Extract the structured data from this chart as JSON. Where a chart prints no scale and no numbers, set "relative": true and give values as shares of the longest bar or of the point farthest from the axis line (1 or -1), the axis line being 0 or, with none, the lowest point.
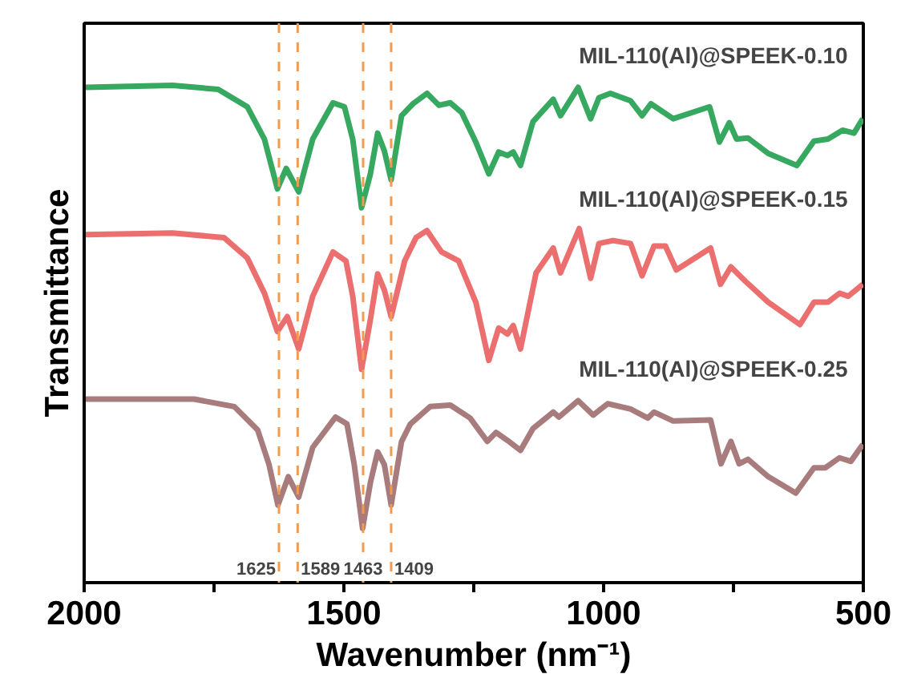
{
  "chart_data": {
    "type": "line",
    "relative": true,
    "xlabel": "Wavenumber (nm⁻¹)",
    "ylabel": "Transmittance",
    "xlim": [
      2000,
      500
    ],
    "xticks": [
      2000,
      1500,
      1000,
      500
    ],
    "grid": false,
    "legend": false,
    "tick_labels": "x",
    "series": [
      {
        "name": "MIL-110(Al)@SPEEK-0.10",
        "color": "#36a860",
        "x": [
          1997,
          1830,
          1742,
          1686,
          1653,
          1628,
          1611,
          1587,
          1560,
          1521,
          1499,
          1483,
          1466,
          1449,
          1435,
          1422,
          1409,
          1389,
          1367,
          1340,
          1317,
          1295,
          1273,
          1246,
          1221,
          1202,
          1185,
          1174,
          1160,
          1136,
          1097,
          1083,
          1049,
          1025,
          1009,
          987,
          948,
          926,
          909,
          866,
          796,
          777,
          758,
          744,
          722,
          683,
          628,
          595,
          568,
          540,
          518,
          501
        ],
        "values": [
          0.996,
          1.0,
          0.992,
          0.957,
          0.892,
          0.792,
          0.833,
          0.786,
          0.892,
          0.965,
          0.957,
          0.892,
          0.754,
          0.822,
          0.904,
          0.868,
          0.81,
          0.939,
          0.963,
          0.984,
          0.96,
          0.965,
          0.945,
          0.886,
          0.822,
          0.866,
          0.859,
          0.866,
          0.839,
          0.927,
          0.972,
          0.939,
          0.996,
          0.933,
          0.975,
          0.984,
          0.969,
          0.939,
          0.963,
          0.933,
          0.957,
          0.886,
          0.925,
          0.892,
          0.894,
          0.863,
          0.839,
          0.888,
          0.892,
          0.91,
          0.904,
          0.933
        ]
      },
      {
        "name": "MIL-110(Al)@SPEEK-0.15",
        "color": "#ec6f6f",
        "x": [
          1997,
          1830,
          1731,
          1686,
          1653,
          1628,
          1609,
          1587,
          1560,
          1521,
          1496,
          1483,
          1466,
          1449,
          1435,
          1422,
          1409,
          1383,
          1361,
          1340,
          1312,
          1279,
          1246,
          1221,
          1202,
          1185,
          1174,
          1160,
          1130,
          1097,
          1083,
          1047,
          1025,
          1009,
          982,
          948,
          926,
          903,
          881,
          860,
          794,
          775,
          755,
          727,
          683,
          622,
          595,
          568,
          546,
          529,
          501
        ],
        "values": [
          0.7,
          0.703,
          0.694,
          0.653,
          0.582,
          0.505,
          0.535,
          0.47,
          0.576,
          0.665,
          0.647,
          0.576,
          0.429,
          0.529,
          0.621,
          0.588,
          0.535,
          0.647,
          0.694,
          0.708,
          0.665,
          0.647,
          0.564,
          0.447,
          0.512,
          0.5,
          0.517,
          0.47,
          0.623,
          0.673,
          0.623,
          0.712,
          0.612,
          0.682,
          0.688,
          0.682,
          0.617,
          0.677,
          0.677,
          0.629,
          0.673,
          0.6,
          0.635,
          0.606,
          0.564,
          0.519,
          0.564,
          0.564,
          0.582,
          0.576,
          0.6
        ]
      },
      {
        "name": "MIL-110(Al)@SPEEK-0.25",
        "color": "#a87c7c",
        "x": [
          1997,
          1788,
          1711,
          1666,
          1644,
          1627,
          1607,
          1587,
          1560,
          1516,
          1494,
          1480,
          1464,
          1449,
          1435,
          1422,
          1409,
          1389,
          1372,
          1334,
          1295,
          1257,
          1224,
          1207,
          1185,
          1160,
          1136,
          1097,
          1086,
          1049,
          1020,
          992,
          948,
          915,
          903,
          866,
          794,
          774,
          755,
          739,
          722,
          683,
          630,
          595,
          573,
          546,
          524,
          501
        ],
        "values": [
          0.369,
          0.369,
          0.354,
          0.307,
          0.237,
          0.156,
          0.213,
          0.172,
          0.272,
          0.333,
          0.319,
          0.237,
          0.109,
          0.201,
          0.263,
          0.237,
          0.156,
          0.284,
          0.319,
          0.354,
          0.357,
          0.331,
          0.284,
          0.302,
          0.286,
          0.266,
          0.31,
          0.343,
          0.333,
          0.366,
          0.337,
          0.36,
          0.349,
          0.331,
          0.343,
          0.325,
          0.327,
          0.239,
          0.284,
          0.239,
          0.248,
          0.213,
          0.18,
          0.231,
          0.231,
          0.251,
          0.244,
          0.278
        ]
      }
    ],
    "ref_lines": [
      {
        "axis": "x",
        "value": 1625,
        "label": "1625",
        "color": "#f39a4e",
        "line_style": "dashed"
      },
      {
        "axis": "x",
        "value": 1589,
        "label": "1589",
        "color": "#f39a4e",
        "line_style": "dashed"
      },
      {
        "axis": "x",
        "value": 1463,
        "label": "1463",
        "color": "#f39a4e",
        "line_style": "dashed"
      },
      {
        "axis": "x",
        "value": 1409,
        "label": "1409",
        "color": "#f39a4e",
        "line_style": "dashed"
      }
    ]
  }
}
